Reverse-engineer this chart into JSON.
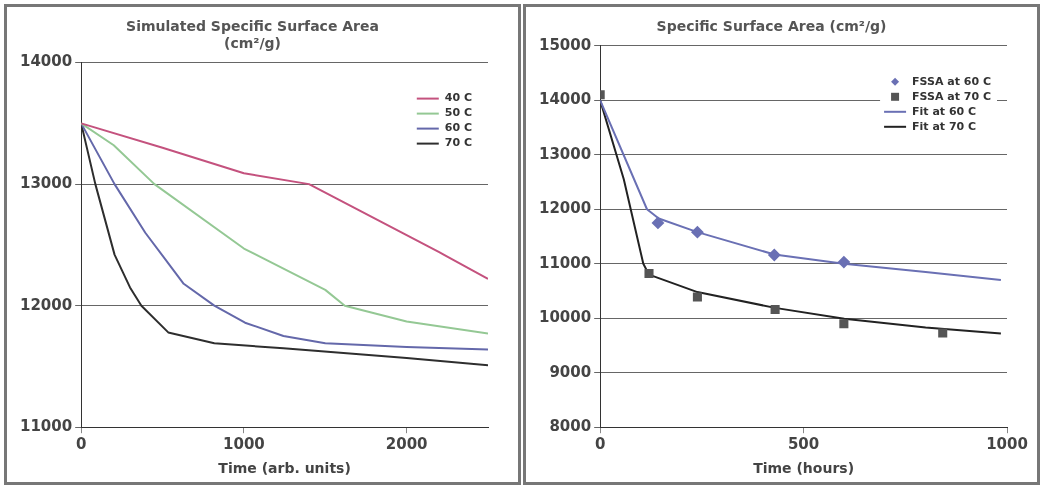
{
  "chart_data": [
    {
      "type": "line",
      "title": "Simulated Specific Surface Area\n(cm²/g)",
      "xlabel": "Time (arb. units)",
      "xlim": [
        0,
        2500
      ],
      "xticks": [
        0,
        1000,
        2000
      ],
      "ylim": [
        11000,
        14000
      ],
      "yticks": [
        11000,
        12000,
        13000,
        14000
      ],
      "grid": "y",
      "legend": "top right",
      "marker": "none",
      "line_style": "solid",
      "series": [
        {
          "name": "40 C",
          "color": "#c4527e",
          "x": [
            0,
            500,
            1000,
            1400,
            1800,
            2200,
            2500
          ],
          "values": [
            13500,
            13300,
            13090,
            13000,
            12720,
            12440,
            12220
          ]
        },
        {
          "name": "50 C",
          "color": "#94c894",
          "x": [
            0,
            200,
            450,
            1000,
            1500,
            1620,
            2000,
            2500
          ],
          "values": [
            13500,
            13320,
            13000,
            12470,
            12130,
            12000,
            11870,
            11770
          ]
        },
        {
          "name": "60 C",
          "color": "#6468aa",
          "x": [
            0,
            205,
            394,
            630,
            818,
            1007,
            1243,
            1500,
            2000,
            2500
          ],
          "values": [
            13500,
            13000,
            12600,
            12180,
            12000,
            11860,
            11750,
            11690,
            11660,
            11640
          ]
        },
        {
          "name": "70 C",
          "color": "#2e2e2e",
          "x": [
            0,
            87,
            205,
            300,
            370,
            535,
            818,
            1243,
            2000,
            2500
          ],
          "values": [
            13500,
            13000,
            12420,
            12150,
            12000,
            11780,
            11690,
            11650,
            11570,
            11510
          ]
        }
      ]
    },
    {
      "type": "line",
      "title": "Specific Surface Area (cm²/g)",
      "xlabel": "Time (hours)",
      "xlim": [
        0,
        1000
      ],
      "xticks": [
        0,
        500,
        1000
      ],
      "ylim": [
        8000,
        15000
      ],
      "yticks": [
        8000,
        9000,
        10000,
        11000,
        12000,
        13000,
        14000,
        15000
      ],
      "grid": "y",
      "legend": "top right",
      "line_style": "solid",
      "series": [
        {
          "name": "FSSA at 60 C",
          "type": "scatter",
          "marker": "diamond",
          "color": "#6a70b4",
          "x": [
            142,
            239,
            428,
            599
          ],
          "values": [
            11750,
            11580,
            11160,
            11030
          ]
        },
        {
          "name": "FSSA at 70 C",
          "type": "scatter",
          "marker": "square",
          "color": "#555555",
          "x": [
            0,
            120,
            239,
            430,
            599,
            842
          ],
          "values": [
            14100,
            10820,
            10390,
            10160,
            9900,
            9730
          ]
        },
        {
          "name": "Fit at 60 C",
          "color": "#6a70b4",
          "marker": "none",
          "x": [
            0,
            115,
            144,
            239,
            428,
            599,
            800,
            985
          ],
          "values": [
            14000,
            12000,
            11830,
            11580,
            11170,
            11000,
            10850,
            10700
          ]
        },
        {
          "name": "Fit at 70 C",
          "color": "#222222",
          "marker": "none",
          "x": [
            0,
            58,
            106,
            120,
            183,
            239,
            430,
            600,
            800,
            985
          ],
          "values": [
            14000,
            12550,
            11000,
            10800,
            10630,
            10480,
            10190,
            9990,
            9830,
            9720
          ]
        }
      ]
    }
  ]
}
